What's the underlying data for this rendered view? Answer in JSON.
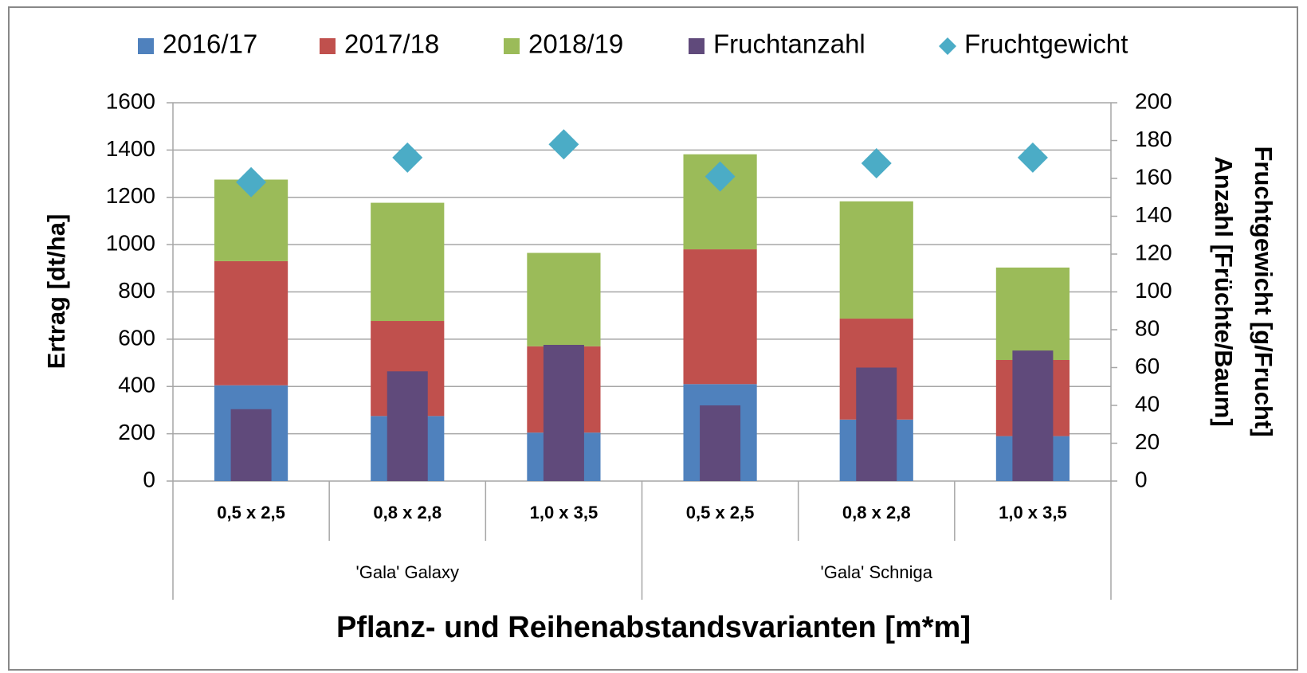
{
  "chart_data": {
    "type": "bar",
    "categories": [
      "0,5 x 2,5",
      "0,8 x 2,8",
      "1,0 x 3,5",
      "0,5 x 2,5",
      "0,8 x 2,8",
      "1,0 x 3,5"
    ],
    "groups": [
      "'Gala' Galaxy",
      "'Gala' Schniga"
    ],
    "xlabel": "Pflanz- und Reihenabstandsvarianten [m*m]",
    "ylabel": "Ertrag [dt/ha]",
    "y2label": [
      "Fruchtgewicht [g/Frucht]",
      "Anzahl [Früchte/Baum]"
    ],
    "ylim": [
      0,
      1600
    ],
    "yticks": [
      0,
      200,
      400,
      600,
      800,
      1000,
      1200,
      1400,
      1600
    ],
    "y2lim": [
      0,
      200
    ],
    "y2ticks": [
      0,
      20,
      40,
      60,
      80,
      100,
      120,
      140,
      160,
      180,
      200
    ],
    "grid": true,
    "legend": "top",
    "series": [
      {
        "name": "2016/17",
        "color": "#4f81bd",
        "kind": "stack",
        "values": [
          405,
          275,
          205,
          410,
          260,
          190
        ]
      },
      {
        "name": "2017/18",
        "color": "#c0504d",
        "kind": "stack",
        "values": [
          525,
          402,
          365,
          570,
          427,
          322
        ]
      },
      {
        "name": "2018/19",
        "color": "#9bbb59",
        "kind": "stack",
        "values": [
          345,
          500,
          395,
          402,
          496,
          391
        ]
      },
      {
        "name": "Fruchtanzahl",
        "color": "#604a7b",
        "kind": "bar",
        "axis": "y2",
        "values": [
          38,
          58,
          72,
          40,
          60,
          69
        ]
      },
      {
        "name": "Fruchtgewicht",
        "color": "#4bacc6",
        "kind": "marker",
        "axis": "y2",
        "values": [
          158,
          171,
          178,
          161,
          168,
          171
        ]
      }
    ]
  }
}
